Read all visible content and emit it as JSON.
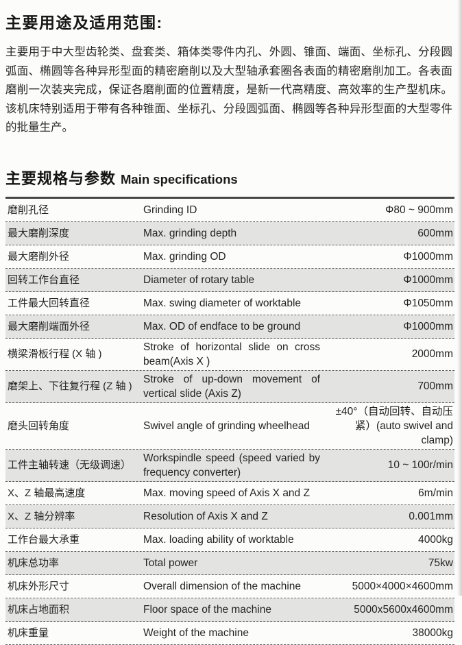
{
  "intro": {
    "title": "主要用途及适用范围:",
    "body": "主要用于中大型齿轮类、盘套类、箱体类零件内孔、外圆、锥面、端面、坐标孔、分段圆弧面、椭圆等各种异形型面的精密磨削以及大型轴承套圈各表面的精密磨削加工。各表面磨削一次装夹完成，保证各磨削面的位置精度，是新一代高精度、高效率的生产型机床。该机床特别适用于带有各种锥面、坐标孔、分段圆弧面、椭圆等各种异形型面的大型零件的批量生产。"
  },
  "specs": {
    "title_zh": "主要规格与参数",
    "title_en": "Main specifications"
  },
  "spec_table": {
    "rows": [
      {
        "name_zh": "磨削孔径",
        "name_en": "Grinding ID",
        "value": "Φ80 ~ 900mm"
      },
      {
        "name_zh": "最大磨削深度",
        "name_en": "Max. grinding depth",
        "value": "600mm"
      },
      {
        "name_zh": "最大磨削外径",
        "name_en": "Max. grinding OD",
        "value": "Φ1000mm"
      },
      {
        "name_zh": "回转工作台直径",
        "name_en": "Diameter of rotary table",
        "value": "Φ1000mm"
      },
      {
        "name_zh": "工件最大回转直径",
        "name_en": "Max. swing diameter of worktable",
        "value": "Φ1050mm"
      },
      {
        "name_zh": "最大磨削端面外径",
        "name_en": "Max. OD of endface to be ground",
        "value": "Φ1000mm"
      },
      {
        "name_zh": "横梁滑板行程 (X 轴 )",
        "name_en": "Stroke of horizontal slide on cross beam(Axis X )",
        "value": "2000mm"
      },
      {
        "name_zh": "磨架上、下往复行程 (Z 轴 )",
        "name_en": "Stroke of up-down movement of vertical slide (Axis Z)",
        "value": "700mm"
      },
      {
        "name_zh": "磨头回转角度",
        "name_en": "Swivel angle of grinding wheelhead",
        "value": "±40°（自动回转、自动压紧）(auto swivel and clamp)"
      },
      {
        "name_zh": "工件主轴转速（无级调速）",
        "name_en": "Workspindle speed (speed varied by frequency converter)",
        "value": "10 ~ 100r/min"
      },
      {
        "name_zh": "X、Z 轴最高速度",
        "name_en": "Max. moving speed of Axis X and Z",
        "value": "6m/min"
      },
      {
        "name_zh": "X、Z 轴分辨率",
        "name_en": "Resolution of Axis X and Z",
        "value": "0.001mm"
      },
      {
        "name_zh": "工作台最大承重",
        "name_en": "Max. loading ability of worktable",
        "value": "4000kg"
      },
      {
        "name_zh": "机床总功率",
        "name_en": "Total power",
        "value": "75kw"
      },
      {
        "name_zh": "机床外形尺寸",
        "name_en": "Overall dimension of the machine",
        "value": "5000×4000×4600mm"
      },
      {
        "name_zh": "机床占地面积",
        "name_en": "Floor space of the machine",
        "value": "5000x5600x4600mm"
      },
      {
        "name_zh": "机床重量",
        "name_en": "Weight of the machine",
        "value": "38000kg"
      }
    ]
  },
  "colors": {
    "row_alt_background": "#e3e3e2",
    "rule_line": "#5c5c5c",
    "text": "#232323"
  }
}
